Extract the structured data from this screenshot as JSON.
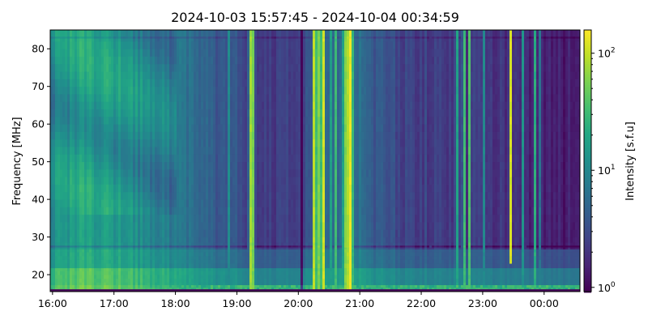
{
  "chart_data": {
    "type": "heatmap",
    "title": "2024-10-03 15:57:45 - 2024-10-04 00:34:59",
    "xlabel": "",
    "ylabel": "Frequency [MHz]",
    "colorbar_label": "Intensity [s.f.u]",
    "colormap": "viridis",
    "color_scale": "log",
    "color_range": [
      0.92,
      158
    ],
    "x_range": [
      "15:57:45",
      "00:34:59"
    ],
    "y_range": [
      15.5,
      85
    ],
    "x_ticks": [
      "16:00",
      "17:00",
      "18:00",
      "19:00",
      "20:00",
      "21:00",
      "22:00",
      "23:00",
      "00:00"
    ],
    "y_ticks": [
      20,
      30,
      40,
      50,
      60,
      70,
      80
    ],
    "colorbar_ticks": [
      {
        "value": 1,
        "base": "10",
        "exp": "0"
      },
      {
        "value": 10,
        "base": "10",
        "exp": "1"
      },
      {
        "value": 100,
        "base": "10",
        "exp": "2"
      }
    ],
    "background_profile": [
      {
        "time": "15:58",
        "sfu": 11
      },
      {
        "time": "16:30",
        "sfu": 17
      },
      {
        "time": "17:00",
        "sfu": 15
      },
      {
        "time": "17:30",
        "sfu": 11
      },
      {
        "time": "18:00",
        "sfu": 7
      },
      {
        "time": "18:30",
        "sfu": 4.5
      },
      {
        "time": "19:00",
        "sfu": 3.5
      },
      {
        "time": "19:30",
        "sfu": 2.3
      },
      {
        "time": "20:00",
        "sfu": 2.8
      },
      {
        "time": "20:30",
        "sfu": 5
      },
      {
        "time": "21:00",
        "sfu": 5.5
      },
      {
        "time": "21:30",
        "sfu": 3
      },
      {
        "time": "22:00",
        "sfu": 2.5
      },
      {
        "time": "22:30",
        "sfu": 2.4
      },
      {
        "time": "23:00",
        "sfu": 2
      },
      {
        "time": "23:30",
        "sfu": 1.8
      },
      {
        "time": "00:00",
        "sfu": 1.6
      },
      {
        "time": "00:35",
        "sfu": 1.3
      }
    ],
    "bursts": [
      {
        "time": "16:17",
        "sfu": 30,
        "width_min": 0.6,
        "freq": [
          21,
          35
        ]
      },
      {
        "time": "18:53",
        "sfu": 25,
        "width_min": 0.7,
        "freq": [
          16,
          85
        ]
      },
      {
        "time": "19:14",
        "sfu": 90,
        "width_min": 1.2,
        "freq": [
          16,
          85
        ]
      },
      {
        "time": "19:16",
        "sfu": 60,
        "width_min": 0.8,
        "freq": [
          16,
          85
        ]
      },
      {
        "time": "20:03",
        "sfu": 0.9,
        "width_min": 1.0,
        "freq": [
          16,
          85
        ]
      },
      {
        "time": "20:16",
        "sfu": 150,
        "width_min": 0.9,
        "freq": [
          16,
          85
        ]
      },
      {
        "time": "20:19",
        "sfu": 120,
        "width_min": 0.8,
        "freq": [
          16,
          85
        ]
      },
      {
        "time": "20:24",
        "sfu": 150,
        "width_min": 1.0,
        "freq": [
          16,
          85
        ]
      },
      {
        "time": "20:31",
        "sfu": 30,
        "width_min": 0.8,
        "freq": [
          16,
          85
        ]
      },
      {
        "time": "20:37",
        "sfu": 40,
        "width_min": 0.8,
        "freq": [
          16,
          85
        ]
      },
      {
        "time": "20:48",
        "sfu": 90,
        "width_min": 2.5,
        "freq": [
          16,
          85
        ]
      },
      {
        "time": "20:51",
        "sfu": 150,
        "width_min": 1.2,
        "freq": [
          16,
          85
        ]
      },
      {
        "time": "22:08",
        "sfu": 10,
        "width_min": 0.6,
        "freq": [
          16,
          85
        ]
      },
      {
        "time": "22:35",
        "sfu": 20,
        "width_min": 0.7,
        "freq": [
          16,
          85
        ]
      },
      {
        "time": "22:42",
        "sfu": 35,
        "width_min": 1.0,
        "freq": [
          16,
          85
        ]
      },
      {
        "time": "22:47",
        "sfu": 40,
        "width_min": 0.9,
        "freq": [
          16,
          85
        ]
      },
      {
        "time": "23:01",
        "sfu": 12,
        "width_min": 0.6,
        "freq": [
          16,
          85
        ]
      },
      {
        "time": "23:27",
        "sfu": 150,
        "width_min": 0.6,
        "freq": [
          23,
          85
        ]
      },
      {
        "time": "23:40",
        "sfu": 25,
        "width_min": 0.7,
        "freq": [
          16,
          85
        ]
      },
      {
        "time": "23:51",
        "sfu": 25,
        "width_min": 0.8,
        "freq": [
          16,
          85
        ]
      },
      {
        "time": "23:55",
        "sfu": 18,
        "width_min": 0.6,
        "freq": [
          16,
          85
        ]
      }
    ]
  }
}
